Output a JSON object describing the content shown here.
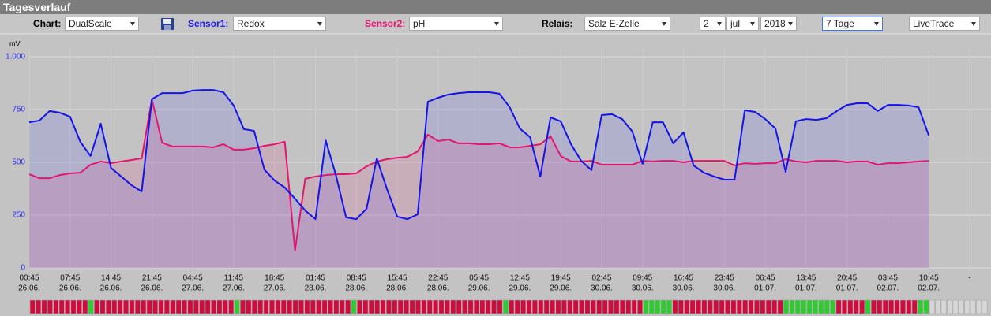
{
  "header": {
    "title": "Tagesverlauf"
  },
  "toolbar": {
    "chart_label": "Chart:",
    "chart_value": "DualScale",
    "sensor1_label": "Sensor1:",
    "sensor2_label": "Sensor2:",
    "relay_label": "Relais:",
    "relay_value": "Salz E-Zelle",
    "day": 2,
    "month": "jul",
    "year": 2018,
    "range": "7 Tage",
    "mode": "LiveTrace"
  },
  "chart_data": {
    "type": "line",
    "ylabel": "mV",
    "grid": true,
    "fill": true,
    "ytick_color": "#2a2aee",
    "ylim": [
      0,
      1000
    ],
    "yticks": [
      0,
      250,
      500,
      750,
      {
        "value": 1000,
        "label": "1.000"
      }
    ],
    "xlim": [
      0,
      161
    ],
    "xticks": [
      {
        "value": 0,
        "label": "00:45",
        "date": "26.06."
      },
      {
        "value": 7,
        "label": "07:45",
        "date": "26.06."
      },
      {
        "value": 14,
        "label": "14:45",
        "date": "26.06."
      },
      {
        "value": 21,
        "label": "21:45",
        "date": "26.06."
      },
      {
        "value": 28,
        "label": "04:45",
        "date": "27.06."
      },
      {
        "value": 35,
        "label": "11:45",
        "date": "27.06."
      },
      {
        "value": 42,
        "label": "18:45",
        "date": "27.06."
      },
      {
        "value": 49,
        "label": "01:45",
        "date": "28.06."
      },
      {
        "value": 56,
        "label": "08:45",
        "date": "28.06."
      },
      {
        "value": 63,
        "label": "15:45",
        "date": "28.06."
      },
      {
        "value": 70,
        "label": "22:45",
        "date": "28.06."
      },
      {
        "value": 77,
        "label": "05:45",
        "date": "29.06."
      },
      {
        "value": 84,
        "label": "12:45",
        "date": "29.06."
      },
      {
        "value": 91,
        "label": "19:45",
        "date": "29.06."
      },
      {
        "value": 98,
        "label": "02:45",
        "date": "30.06."
      },
      {
        "value": 105,
        "label": "09:45",
        "date": "30.06."
      },
      {
        "value": 112,
        "label": "16:45",
        "date": "30.06."
      },
      {
        "value": 119,
        "label": "23:45",
        "date": "30.06."
      },
      {
        "value": 126,
        "label": "06:45",
        "date": "01.07."
      },
      {
        "value": 133,
        "label": "13:45",
        "date": "01.07."
      },
      {
        "value": 140,
        "label": "20:45",
        "date": "01.07."
      },
      {
        "value": 147,
        "label": "03:45",
        "date": "02.07."
      },
      {
        "value": 154,
        "label": "10:45",
        "date": "02.07."
      },
      {
        "value": 161,
        "label": "-"
      }
    ],
    "x": [
      0,
      1.75,
      3.5,
      5.25,
      7,
      8.75,
      10.5,
      12.25,
      14,
      15.75,
      17.5,
      19.25,
      21,
      22.75,
      24.5,
      26.25,
      28,
      29.75,
      31.5,
      33.25,
      35,
      36.75,
      38.5,
      40.25,
      42,
      43.75,
      45.5,
      47.25,
      49,
      50.75,
      52.5,
      54.25,
      56,
      57.75,
      59.5,
      61.25,
      63,
      64.75,
      66.5,
      68.25,
      70,
      71.75,
      73.5,
      75.25,
      77,
      78.75,
      80.5,
      82.25,
      84,
      85.75,
      87.5,
      89.25,
      91,
      92.75,
      94.5,
      96.25,
      98,
      99.75,
      101.5,
      103.25,
      105,
      106.75,
      108.5,
      110.25,
      112,
      113.75,
      115.5,
      117.25,
      119,
      120.75,
      122.5,
      124.25,
      126,
      127.75,
      129.5,
      131.25,
      133,
      134.75,
      136.5,
      138.25,
      140,
      141.75,
      143.5,
      145.25,
      147,
      148.75,
      150.5,
      152.25,
      154
    ],
    "series": [
      {
        "name": "Redox",
        "color": "#1414e6",
        "fill": "rgba(90,90,255,0.16)",
        "values": [
          690,
          698,
          743,
          735,
          716,
          597,
          530,
          683,
          474,
          433,
          392,
          362,
          799,
          828,
          828,
          828,
          840,
          843,
          843,
          832,
          769,
          657,
          649,
          466,
          414,
          381,
          328,
          272,
          231,
          604,
          440,
          239,
          231,
          280,
          519,
          373,
          243,
          231,
          254,
          787,
          806,
          821,
          828,
          832,
          832,
          832,
          825,
          761,
          660,
          619,
          433,
          713,
          694,
          586,
          507,
          463,
          724,
          728,
          705,
          646,
          493,
          690,
          690,
          590,
          642,
          485,
          451,
          433,
          418,
          418,
          746,
          739,
          705,
          660,
          455,
          694,
          705,
          701,
          709,
          743,
          772,
          780,
          780,
          743,
          772,
          772,
          769,
          761,
          627
        ]
      },
      {
        "name": "pH",
        "color": "#e3166e",
        "fill": "rgba(235,40,120,0.13)",
        "values": [
          444,
          425,
          425,
          440,
          448,
          451,
          489,
          504,
          496,
          504,
          511,
          519,
          799,
          593,
          575,
          575,
          575,
          575,
          571,
          586,
          560,
          560,
          567,
          578,
          586,
          597,
          82,
          422,
          433,
          440,
          444,
          444,
          448,
          481,
          504,
          515,
          522,
          526,
          552,
          631,
          601,
          608,
          590,
          590,
          586,
          586,
          590,
          571,
          571,
          578,
          586,
          623,
          530,
          504,
          504,
          507,
          489,
          489,
          489,
          489,
          507,
          504,
          507,
          507,
          500,
          507,
          507,
          507,
          507,
          485,
          496,
          493,
          496,
          496,
          515,
          504,
          500,
          507,
          507,
          507,
          500,
          504,
          504,
          489,
          496,
          496,
          500,
          504,
          507
        ]
      }
    ],
    "relay": {
      "colors": [
        "#cf0c3e",
        "#2ecc2e"
      ],
      "empty_color": "#d6d6d6",
      "states": [
        0,
        0,
        0,
        0,
        0,
        0,
        0,
        0,
        0,
        0,
        1,
        0,
        0,
        0,
        0,
        0,
        0,
        0,
        0,
        0,
        0,
        0,
        0,
        0,
        0,
        0,
        0,
        0,
        0,
        0,
        0,
        0,
        0,
        0,
        0,
        1,
        0,
        0,
        0,
        0,
        0,
        0,
        0,
        0,
        0,
        0,
        0,
        0,
        0,
        0,
        0,
        0,
        0,
        0,
        0,
        1,
        0,
        0,
        0,
        0,
        0,
        0,
        0,
        0,
        0,
        0,
        0,
        0,
        0,
        0,
        0,
        0,
        0,
        0,
        0,
        0,
        0,
        0,
        0,
        0,
        0,
        1,
        0,
        0,
        0,
        0,
        0,
        0,
        0,
        0,
        0,
        0,
        0,
        0,
        0,
        0,
        0,
        0,
        0,
        0,
        0,
        0,
        0,
        0,
        0,
        1,
        1,
        1,
        1,
        1,
        0,
        0,
        0,
        0,
        0,
        0,
        0,
        0,
        0,
        0,
        0,
        0,
        0,
        0,
        0,
        0,
        0,
        0,
        0,
        1,
        1,
        1,
        1,
        1,
        1,
        1,
        1,
        1,
        0,
        0,
        0,
        0,
        0,
        1,
        0,
        0,
        0,
        0,
        0,
        0,
        0,
        0,
        1,
        1,
        null,
        null,
        null,
        null,
        null,
        null,
        null,
        null,
        null,
        null
      ]
    }
  }
}
